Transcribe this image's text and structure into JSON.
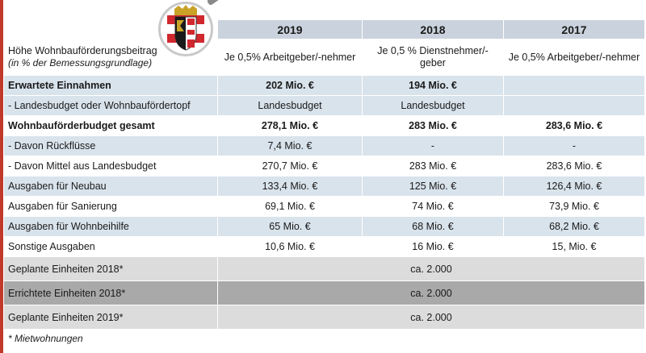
{
  "header": {
    "years": [
      "2019",
      "2018",
      "2017"
    ]
  },
  "rows": [
    {
      "label": "Höhe Wohnbauförderungsbeitrag",
      "sublabel": "(in % der Bemessungsgrundlage)",
      "values": [
        "Je 0,5% Arbeitgeber/-nehmer",
        "Je 0,5 % Dienstnehmer/-geber",
        "Je 0,5% Arbeitgeber/-nehmer"
      ]
    },
    {
      "label": "Erwartete Einnahmen",
      "values": [
        "202 Mio. €",
        "194 Mio. €",
        ""
      ]
    },
    {
      "label": "- Landesbudget oder Wohnbaufördertopf",
      "values": [
        "Landesbudget",
        "Landesbudget",
        ""
      ]
    },
    {
      "label": "Wohnbauförderbudget gesamt",
      "values": [
        "278,1 Mio. €",
        "283 Mio. €",
        "283,6 Mio. €"
      ]
    },
    {
      "label": "- Davon Rückflüsse",
      "values": [
        "7,4 Mio. €",
        "-",
        "-"
      ]
    },
    {
      "label": "- Davon Mittel aus Landesbudget",
      "values": [
        "270,7 Mio. €",
        "283 Mio. €",
        "283,6 Mio. €"
      ]
    },
    {
      "label": "Ausgaben für Neubau",
      "values": [
        "133,4 Mio. €",
        "125 Mio. €",
        "126,4 Mio. €"
      ]
    },
    {
      "label": "Ausgaben für Sanierung",
      "values": [
        "69,1 Mio. €",
        "74 Mio. €",
        "73,9 Mio. €"
      ]
    },
    {
      "label": "Ausgaben für Wohnbeihilfe",
      "values": [
        "65 Mio. €",
        "68 Mio. €",
        "68,2 Mio. €"
      ]
    },
    {
      "label": "Sonstige Ausgaben",
      "values": [
        "10,6 Mio. €",
        "16 Mio. €",
        "15, Mio. €"
      ]
    }
  ],
  "units": [
    {
      "label": "Geplante Einheiten 2018*",
      "value": "ca. 2.000"
    },
    {
      "label": "Errichtete Einheiten 2018*",
      "value": "ca. 2.000"
    },
    {
      "label": "Geplante Einheiten 2019*",
      "value": "ca. 2.000"
    }
  ],
  "footnote": "* Mietwohnungen",
  "icons": {
    "seal": "upper-austria-coat-of-arms-icon",
    "magnifier": "magnifier-icon"
  },
  "colors": {
    "header_bg": "#c9d2dd",
    "highlight_row": "#d9e3ec",
    "units_row": "#dcdcdc",
    "units_row_dark": "#a9a9a9",
    "accent_red": "#c0392b"
  }
}
